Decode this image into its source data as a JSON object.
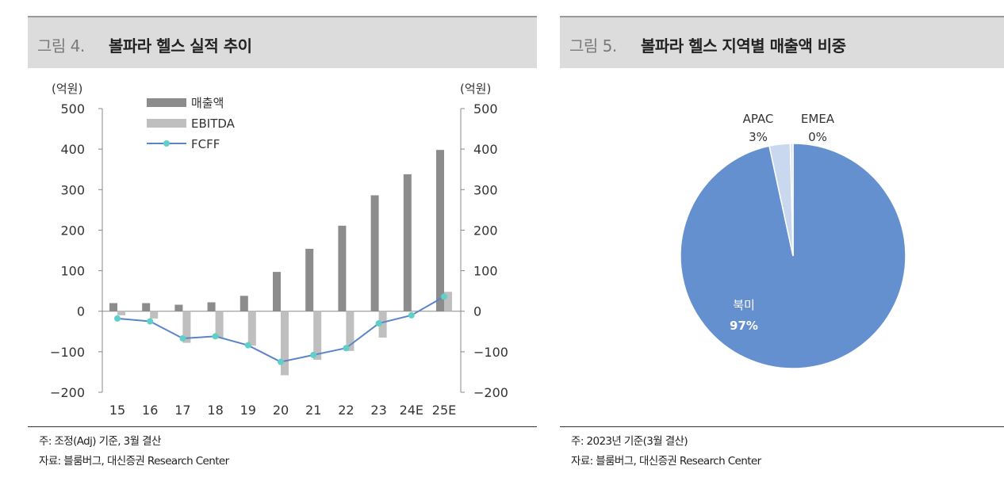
{
  "left_panel": {
    "figure_number": "그림 4.",
    "title": "볼파라 헬스 실적 추이",
    "note": "주: 조정(Adj) 기준, 3월 결산",
    "source": "자료: 블룸버그, 대신증권 Research Center"
  },
  "right_panel": {
    "figure_number": "그림 5.",
    "title": "볼파라 헬스 지역별 매출액 비중",
    "note": "주: 2023년 기준(3월 결산)",
    "source": "자료: 블룸버그, 대신증권 Research Center"
  },
  "chart_data": [
    {
      "type": "bar",
      "categories": [
        "15",
        "16",
        "17",
        "18",
        "19",
        "20",
        "21",
        "22",
        "23",
        "24E",
        "25E"
      ],
      "series": [
        {
          "name": "매출액",
          "kind": "bar",
          "color": "#8c8c8c",
          "values": [
            20,
            20,
            16,
            22,
            38,
            97,
            154,
            211,
            286,
            338,
            398
          ]
        },
        {
          "name": "EBITDA",
          "kind": "bar",
          "color": "#bfbfbf",
          "values": [
            -10,
            -18,
            -78,
            -65,
            -85,
            -158,
            -120,
            -98,
            -65,
            0,
            48
          ]
        },
        {
          "name": "FCFF",
          "kind": "line",
          "color": "#5b85c7",
          "marker_color": "#5fd0c8",
          "values": [
            -18,
            -25,
            -67,
            -62,
            -84,
            -125,
            -108,
            -91,
            -30,
            -10,
            36
          ]
        }
      ],
      "ylabel_left": "(억원)",
      "ylabel_right": "(억원)",
      "ylim": [
        -200,
        500
      ],
      "yticks": [
        500,
        400,
        300,
        200,
        100,
        0,
        -100,
        -200
      ],
      "ytick_labels": [
        "500",
        "400",
        "300",
        "200",
        "100",
        "0",
        "−100",
        "−200"
      ],
      "legend_placement": "top-left",
      "grid": false
    },
    {
      "type": "pie",
      "slices": [
        {
          "label": "북미",
          "value": 97,
          "value_label": "97%",
          "color": "#6590d0"
        },
        {
          "label": "APAC",
          "value": 3,
          "value_label": "3%",
          "color": "#c9d8ef"
        },
        {
          "label": "EMEA",
          "value": 0.4,
          "value_label": "0%",
          "color": "#dbe5f4"
        }
      ]
    }
  ]
}
